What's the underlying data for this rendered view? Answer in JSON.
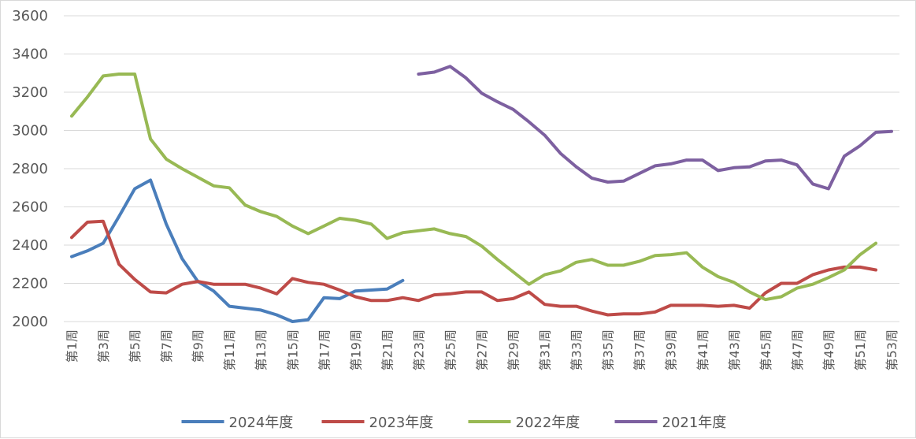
{
  "chart_data": {
    "type": "line",
    "title": "",
    "xlabel": "",
    "ylabel": "",
    "ylim": [
      2000,
      3600
    ],
    "yticks": [
      2000,
      2200,
      2400,
      2600,
      2800,
      3000,
      3200,
      3400,
      3600
    ],
    "grid": true,
    "legend_position": "bottom",
    "x": [
      "第1周",
      "第2周",
      "第3周",
      "第4周",
      "第5周",
      "第6周",
      "第7周",
      "第8周",
      "第9周",
      "第10周",
      "第11周",
      "第12周",
      "第13周",
      "第14周",
      "第15周",
      "第16周",
      "第17周",
      "第18周",
      "第19周",
      "第20周",
      "第21周",
      "第22周",
      "第23周",
      "第24周",
      "第25周",
      "第26周",
      "第27周",
      "第28周",
      "第29周",
      "第30周",
      "第31周",
      "第32周",
      "第33周",
      "第34周",
      "第35周",
      "第36周",
      "第37周",
      "第38周",
      "第39周",
      "第40周",
      "第41周",
      "第42周",
      "第43周",
      "第44周",
      "第45周",
      "第46周",
      "第47周",
      "第48周",
      "第49周",
      "第50周",
      "第51周",
      "第52周",
      "第53周"
    ],
    "x_tick_labels": [
      "第1周",
      "第3周",
      "第5周",
      "第7周",
      "第9周",
      "第11周",
      "第13周",
      "第15周",
      "第17周",
      "第19周",
      "第21周",
      "第23周",
      "第25周",
      "第27周",
      "第29周",
      "第31周",
      "第33周",
      "第35周",
      "第37周",
      "第39周",
      "第41周",
      "第43周",
      "第45周",
      "第47周",
      "第49周",
      "第51周",
      "第53周"
    ],
    "series": [
      {
        "name": "2024年度",
        "color": "#4a7ebb",
        "values": [
          2340,
          2370,
          2410,
          2550,
          2695,
          2740,
          2510,
          2330,
          2210,
          2160,
          2080,
          2070,
          2060,
          2035,
          2000,
          2010,
          2125,
          2120,
          2160,
          2165,
          2170,
          2215,
          null,
          null,
          null,
          null,
          null,
          null,
          null,
          null,
          null,
          null,
          null,
          null,
          null,
          null,
          null,
          null,
          null,
          null,
          null,
          null,
          null,
          null,
          null,
          null,
          null,
          null,
          null,
          null,
          null,
          null,
          null
        ]
      },
      {
        "name": "2023年度",
        "color": "#be4b48",
        "values": [
          2440,
          2520,
          2525,
          2300,
          2220,
          2155,
          2150,
          2195,
          2210,
          2195,
          2195,
          2195,
          2175,
          2145,
          2225,
          2205,
          2195,
          2165,
          2130,
          2110,
          2110,
          2125,
          2110,
          2140,
          2145,
          2155,
          2155,
          2110,
          2120,
          2155,
          2090,
          2080,
          2080,
          2055,
          2035,
          2040,
          2040,
          2050,
          2085,
          2085,
          2085,
          2080,
          2085,
          2070,
          2150,
          2200,
          2200,
          2245,
          2270,
          2285,
          2285,
          2270,
          null
        ]
      },
      {
        "name": "2022年度",
        "color": "#98b954",
        "values": [
          3075,
          3175,
          3285,
          3295,
          3295,
          2955,
          2850,
          2800,
          2755,
          2710,
          2700,
          2610,
          2575,
          2550,
          2500,
          2460,
          2500,
          2540,
          2530,
          2510,
          2435,
          2465,
          2475,
          2485,
          2460,
          2445,
          2395,
          2325,
          2260,
          2195,
          2245,
          2265,
          2310,
          2325,
          2295,
          2295,
          2315,
          2345,
          2350,
          2360,
          2285,
          2235,
          2205,
          2155,
          2115,
          2130,
          2175,
          2195,
          2230,
          2270,
          2350,
          2410,
          null
        ]
      },
      {
        "name": "2021年度",
        "color": "#7d60a0",
        "values": [
          null,
          null,
          null,
          null,
          null,
          null,
          null,
          null,
          null,
          null,
          null,
          null,
          null,
          null,
          null,
          null,
          null,
          null,
          null,
          null,
          null,
          null,
          3295,
          3305,
          3335,
          3275,
          3195,
          3150,
          3110,
          3045,
          2975,
          2880,
          2810,
          2750,
          2730,
          2735,
          2775,
          2815,
          2825,
          2845,
          2845,
          2790,
          2805,
          2810,
          2840,
          2845,
          2820,
          2720,
          2695,
          2865,
          2920,
          2990,
          2995
        ]
      }
    ]
  }
}
